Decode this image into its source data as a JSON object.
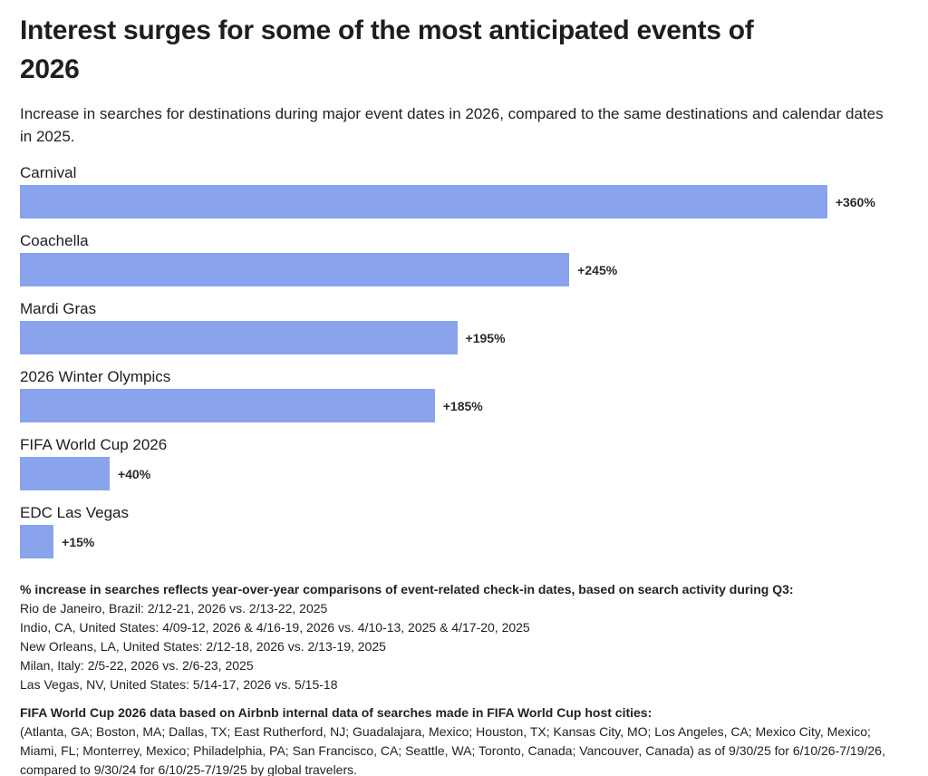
{
  "header": {
    "title_line1": "Interest surges for some of the most anticipated events of",
    "title_line2": "2026",
    "subtitle": "Increase in searches for destinations during major event dates in 2026, compared to the same destinations and calendar dates in 2025."
  },
  "chart_data": {
    "type": "bar",
    "orientation": "horizontal",
    "title": "Interest surges for some of the most anticipated events of 2026",
    "categories": [
      "Carnival",
      "Coachella",
      "Mardi Gras",
      "2026 Winter Olympics",
      "FIFA World Cup 2026",
      "EDC Las Vegas"
    ],
    "values": [
      360,
      245,
      195,
      185,
      40,
      15
    ],
    "value_labels": [
      "+360%",
      "+245%",
      "+195%",
      "+185%",
      "+40%",
      "+15%"
    ],
    "unit": "% year-over-year increase in searches",
    "xlim": [
      0,
      360
    ],
    "grid": false,
    "legend": false,
    "bar_color": "#89A4EC"
  },
  "footnotes": {
    "methodology": {
      "heading": "% increase in searches reflects year-over-year comparisons of event-related check-in dates, based on search activity during Q3:",
      "lines": [
        "Rio de Janeiro, Brazil: 2/12-21, 2026 vs. 2/13-22, 2025",
        "Indio, CA, United States: 4/09-12, 2026 & 4/16-19, 2026 vs. 4/10-13, 2025 & 4/17-20, 2025",
        "New Orleans, LA, United States: 2/12-18, 2026 vs. 2/13-19, 2025",
        "Milan, Italy: 2/5-22, 2026 vs. 2/6-23, 2025",
        "Las Vegas, NV, United States: 5/14-17, 2026 vs. 5/15-18"
      ]
    },
    "fifa": {
      "heading": "FIFA World Cup 2026 data based on Airbnb internal data of searches made in FIFA World Cup host cities:",
      "body": "(Atlanta, GA; Boston, MA; Dallas, TX; East Rutherford, NJ; Guadalajara, Mexico; Houston, TX; Kansas City, MO; Los Angeles, CA; Mexico City, Mexico; Miami, FL; Monterrey, Mexico; Philadelphia, PA; San Francisco, CA; Seattle, WA; Toronto, Canada; Vancouver, Canada) as of 9/30/25 for 6/10/26-7/19/26, compared to 9/30/24 for 6/10/25-7/19/25 by global travelers."
    }
  }
}
